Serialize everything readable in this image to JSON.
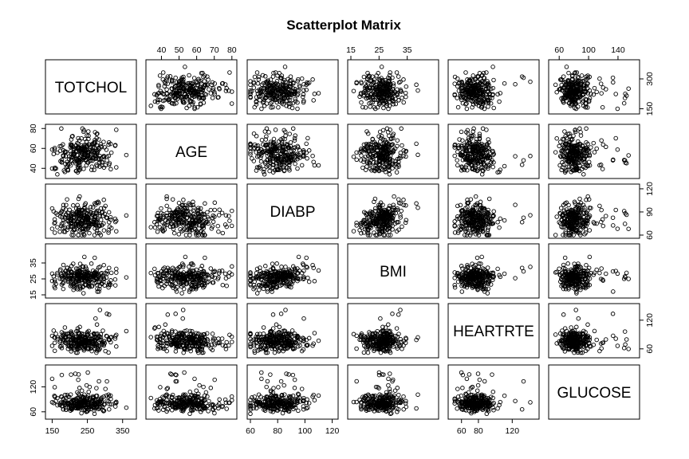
{
  "chart_data": {
    "type": "scatter",
    "title": "Scatterplot Matrix",
    "variables": [
      "TOTCHOL",
      "AGE",
      "DIABP",
      "BMI",
      "HEARTRTE",
      "GLUCOSE"
    ],
    "axis_ranges": {
      "TOTCHOL": [
        140,
        380
      ],
      "AGE": [
        33,
        81
      ],
      "DIABP": [
        60,
        122
      ],
      "BMI": [
        15,
        45
      ],
      "HEARTRTE": [
        48,
        148
      ],
      "GLUCOSE": [
        50,
        165
      ]
    },
    "ticks": {
      "TOTCHOL": [
        150,
        250,
        350
      ],
      "AGE": [
        40,
        50,
        60,
        70,
        80
      ],
      "DIABP": [
        60,
        80,
        100,
        120
      ],
      "BMI": [
        15,
        25,
        35
      ],
      "HEARTRTE": [
        60,
        80,
        120
      ],
      "GLUCOSE": [
        60,
        100,
        140
      ]
    },
    "right_axis_ticks": {
      "TOTCHOL": [
        150,
        300
      ],
      "DIABP": [
        60,
        90,
        120
      ],
      "HEARTRTE": [
        60,
        120
      ]
    },
    "left_axis_ticks": {
      "AGE": [
        40,
        60,
        80
      ],
      "BMI": [
        15,
        25,
        35
      ],
      "GLUCOSE": [
        60,
        120
      ]
    },
    "sample_records": [
      [
        195,
        39,
        70,
        26.97,
        80,
        77
      ],
      [
        250,
        46,
        81,
        28.73,
        95,
        76
      ],
      [
        245,
        48,
        80,
        25.34,
        75,
        70
      ],
      [
        225,
        61,
        95,
        28.58,
        65,
        103
      ],
      [
        285,
        46,
        84,
        23.1,
        85,
        85
      ],
      [
        228,
        43,
        110,
        30.3,
        77,
        99
      ],
      [
        205,
        63,
        71,
        33.11,
        60,
        85
      ],
      [
        313,
        45,
        71,
        21.68,
        79,
        78
      ],
      [
        260,
        52,
        89,
        26.36,
        76,
        79
      ],
      [
        225,
        43,
        107,
        23.61,
        93,
        88
      ],
      [
        254,
        50,
        76,
        22.91,
        75,
        76
      ],
      [
        247,
        43,
        88.5,
        27.64,
        72,
        61
      ],
      [
        294,
        46,
        85,
        26.31,
        98,
        64
      ],
      [
        332,
        41,
        65,
        31.31,
        65,
        84
      ],
      [
        226,
        38,
        85,
        22.35,
        85,
        70
      ],
      [
        221,
        48,
        90.5,
        22.01,
        72,
        72
      ],
      [
        232,
        60,
        72.5,
        26.59,
        65,
        75
      ],
      [
        291,
        46,
        89,
        28.65,
        70,
        94
      ],
      [
        195,
        38,
        78,
        23.24,
        60,
        82
      ],
      [
        190,
        41,
        87,
        26.88,
        85,
        65
      ]
    ]
  }
}
